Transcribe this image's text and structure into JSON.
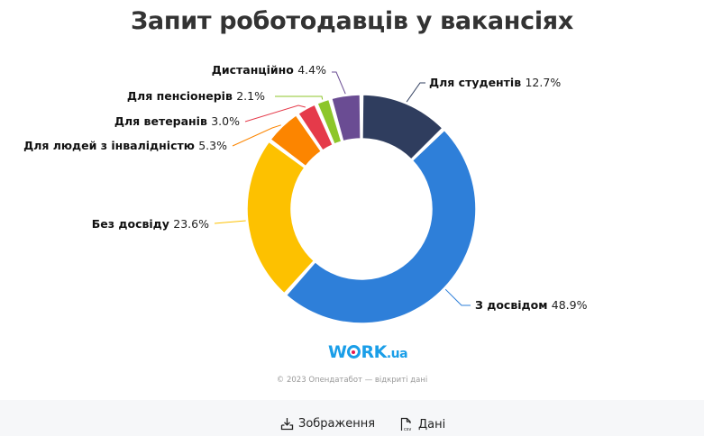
{
  "header": {
    "title": "Запит роботодавців у вакансіях"
  },
  "chart_data": {
    "type": "pie",
    "subtype": "donut",
    "title": "Запит роботодавців у вакансіях",
    "start_angle": "top, clockwise",
    "labels": [
      "Для студентів",
      "З досвідом",
      "Без досвіду",
      "Для людей з інвалідністю",
      "Для ветеранів",
      "Для пенсіонерів",
      "Дистанційно"
    ],
    "values": [
      12.7,
      48.9,
      23.6,
      5.3,
      3.0,
      2.1,
      4.4
    ],
    "unit": "%",
    "colors": [
      "#2f3d5e",
      "#2e7fd9",
      "#fdc100",
      "#fc8500",
      "#e53a4a",
      "#8dc62a",
      "#6a4c93"
    ],
    "legend": "none (callout labels)"
  },
  "labels": [
    {
      "name": "Для студентів",
      "value": "12.7%"
    },
    {
      "name": "З досвідом",
      "value": "48.9%"
    },
    {
      "name": "Без досвіду",
      "value": "23.6%"
    },
    {
      "name": "Для людей з інвалідністю",
      "value": "5.3%"
    },
    {
      "name": "Для ветеранів",
      "value": "3.0%"
    },
    {
      "name": "Для пенсіонерів",
      "value": "2.1%"
    },
    {
      "name": "Дистанційно",
      "value": "4.4%"
    }
  ],
  "branding": {
    "logo_main": "WORK",
    "logo_suffix": ".ua",
    "copyright": "© 2023 Опендатабот — відкриті дані"
  },
  "footer": {
    "image_button": {
      "label": "Зображення",
      "icon": "download-icon"
    },
    "data_button": {
      "label": "Дані",
      "icon": "csv-file-icon"
    }
  }
}
